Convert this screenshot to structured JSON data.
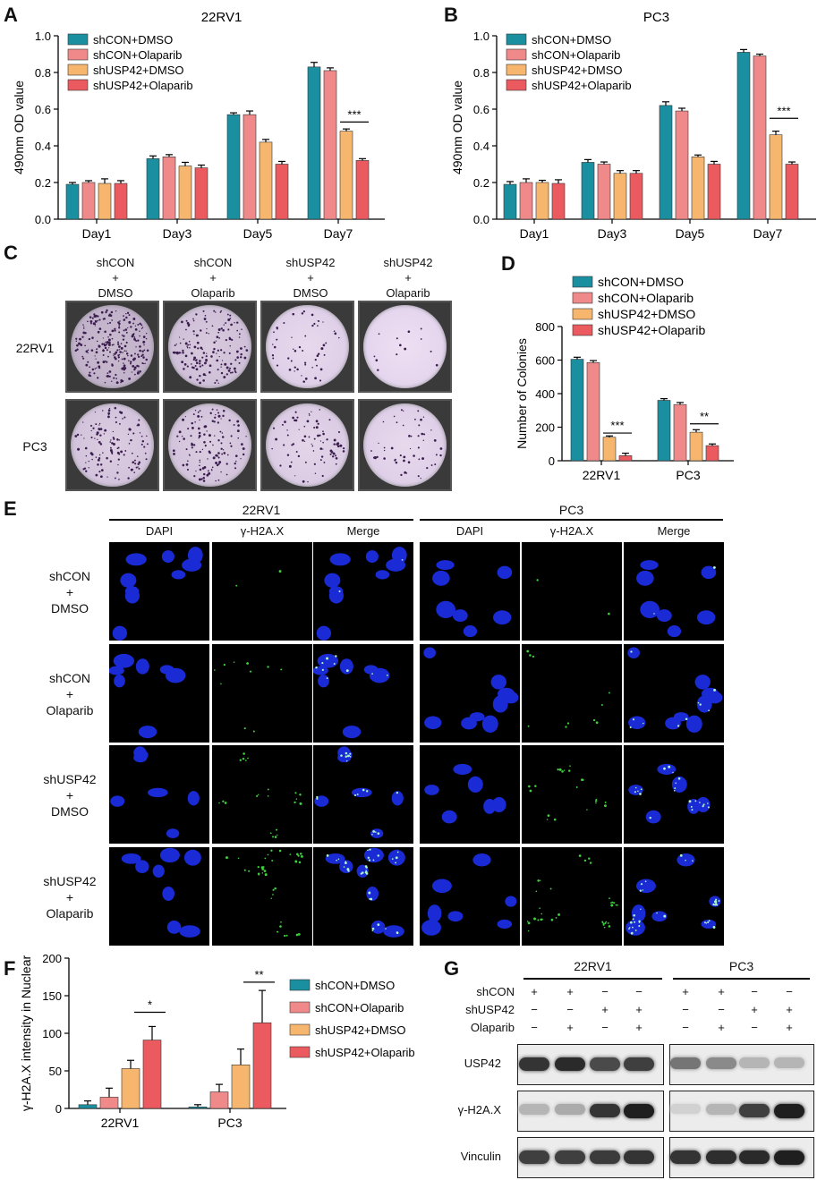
{
  "panels": {
    "A": {
      "letter": "A",
      "title": "22RV1"
    },
    "B": {
      "letter": "B",
      "title": "PC3"
    },
    "C": {
      "letter": "C"
    },
    "D": {
      "letter": "D"
    },
    "E": {
      "letter": "E"
    },
    "F": {
      "letter": "F"
    },
    "G": {
      "letter": "G"
    }
  },
  "legend": [
    "shCON+DMSO",
    "shCON+Olaparib",
    "shUSP42+DMSO",
    "shUSP42+Olaparib"
  ],
  "colors": {
    "s1": "#1a8fa0",
    "s2": "#f08a8a",
    "s3": "#f7b66d",
    "s4": "#ea5a5f"
  },
  "chart_data": [
    {
      "id": "A",
      "type": "bar",
      "title": "22RV1",
      "ylabel": "490nm OD value",
      "ylim": [
        0,
        1.0
      ],
      "yticks": [
        "0.0",
        "0.2",
        "0.4",
        "0.6",
        "0.8",
        "1.0"
      ],
      "categories": [
        "Day1",
        "Day3",
        "Day5",
        "Day7"
      ],
      "series": [
        {
          "name": "shCON+DMSO",
          "values": [
            0.19,
            0.33,
            0.57,
            0.83
          ],
          "errors": [
            0.01,
            0.015,
            0.01,
            0.025
          ]
        },
        {
          "name": "shCON+Olaparib",
          "values": [
            0.2,
            0.34,
            0.57,
            0.81
          ],
          "errors": [
            0.01,
            0.012,
            0.02,
            0.015
          ]
        },
        {
          "name": "shUSP42+DMSO",
          "values": [
            0.195,
            0.29,
            0.42,
            0.48
          ],
          "errors": [
            0.025,
            0.02,
            0.015,
            0.012
          ]
        },
        {
          "name": "shUSP42+Olaparib",
          "values": [
            0.195,
            0.28,
            0.3,
            0.32
          ],
          "errors": [
            0.015,
            0.015,
            0.015,
            0.01
          ]
        }
      ],
      "sig": "***"
    },
    {
      "id": "B",
      "type": "bar",
      "title": "PC3",
      "ylabel": "490nm OD value",
      "ylim": [
        0,
        1.0
      ],
      "yticks": [
        "0.0",
        "0.2",
        "0.4",
        "0.6",
        "0.8",
        "1.0"
      ],
      "categories": [
        "Day1",
        "Day3",
        "Day5",
        "Day7"
      ],
      "series": [
        {
          "name": "shCON+DMSO",
          "values": [
            0.19,
            0.31,
            0.62,
            0.91
          ],
          "errors": [
            0.015,
            0.015,
            0.02,
            0.015
          ]
        },
        {
          "name": "shCON+Olaparib",
          "values": [
            0.2,
            0.3,
            0.59,
            0.89
          ],
          "errors": [
            0.02,
            0.012,
            0.015,
            0.01
          ]
        },
        {
          "name": "shUSP42+DMSO",
          "values": [
            0.2,
            0.25,
            0.34,
            0.46
          ],
          "errors": [
            0.012,
            0.015,
            0.01,
            0.02
          ]
        },
        {
          "name": "shUSP42+Olaparib",
          "values": [
            0.195,
            0.25,
            0.3,
            0.3
          ],
          "errors": [
            0.02,
            0.015,
            0.015,
            0.012
          ]
        }
      ],
      "sig": "***"
    },
    {
      "id": "D",
      "type": "bar",
      "ylabel": "Number of Colonies",
      "ylim": [
        0,
        800
      ],
      "yticks": [
        "0",
        "200",
        "400",
        "600",
        "800"
      ],
      "categories": [
        "22RV1",
        "PC3"
      ],
      "series": [
        {
          "name": "shCON+DMSO",
          "values": [
            605,
            360
          ],
          "errors": [
            12,
            10
          ]
        },
        {
          "name": "shCON+Olaparib",
          "values": [
            585,
            335
          ],
          "errors": [
            12,
            12
          ]
        },
        {
          "name": "shUSP42+DMSO",
          "values": [
            140,
            170
          ],
          "errors": [
            8,
            15
          ]
        },
        {
          "name": "shUSP42+Olaparib",
          "values": [
            30,
            90
          ],
          "errors": [
            15,
            10
          ]
        }
      ],
      "sig": [
        "***",
        "**"
      ]
    },
    {
      "id": "F",
      "type": "bar",
      "ylabel": "γ-H2A.X intensity in Nuclear",
      "ylim": [
        0,
        200
      ],
      "yticks": [
        "0",
        "50",
        "100",
        "150",
        "200"
      ],
      "categories": [
        "22RV1",
        "PC3"
      ],
      "series": [
        {
          "name": "shCON+DMSO",
          "values": [
            5,
            2
          ],
          "errors": [
            5,
            3
          ]
        },
        {
          "name": "shCON+Olaparib",
          "values": [
            15,
            22
          ],
          "errors": [
            12,
            10
          ]
        },
        {
          "name": "shUSP42+DMSO",
          "values": [
            53,
            58
          ],
          "errors": [
            11,
            21
          ]
        },
        {
          "name": "shUSP42+Olaparib",
          "values": [
            91,
            114
          ],
          "errors": [
            18,
            43
          ]
        }
      ],
      "sig": [
        "*",
        "**"
      ]
    }
  ],
  "panelC": {
    "col_headers": [
      [
        "shCON",
        "+",
        "DMSO"
      ],
      [
        "shCON",
        "+",
        "Olaparib"
      ],
      [
        "shUSP42",
        "+",
        "DMSO"
      ],
      [
        "shUSP42",
        "+",
        "Olaparib"
      ]
    ],
    "row_labels": [
      "22RV1",
      "PC3"
    ]
  },
  "panelE": {
    "groups": [
      "22RV1",
      "PC3"
    ],
    "col_labels": [
      "DAPI",
      "γ-H2A.X",
      "Merge",
      "DAPI",
      "γ-H2A.X",
      "Merge"
    ],
    "row_labels": [
      [
        "shCON",
        "+",
        "DMSO"
      ],
      [
        "shCON",
        "+",
        "Olaparib"
      ],
      [
        "shUSP42",
        "+",
        "DMSO"
      ],
      [
        "shUSP42",
        "+",
        "Olaparib"
      ]
    ]
  },
  "panelG": {
    "groups": [
      "22RV1",
      "PC3"
    ],
    "conditions": [
      {
        "label": "shCON",
        "signs": [
          "+",
          "+",
          "−",
          "−",
          "+",
          "+",
          "−",
          "−"
        ]
      },
      {
        "label": "shUSP42",
        "signs": [
          "−",
          "−",
          "+",
          "+",
          "−",
          "−",
          "+",
          "+"
        ]
      },
      {
        "label": "Olaparib",
        "signs": [
          "−",
          "+",
          "−",
          "+",
          "−",
          "+",
          "−",
          "+"
        ]
      }
    ],
    "blots": [
      "USP42",
      "γ-H2A.X",
      "Vinculin"
    ]
  }
}
